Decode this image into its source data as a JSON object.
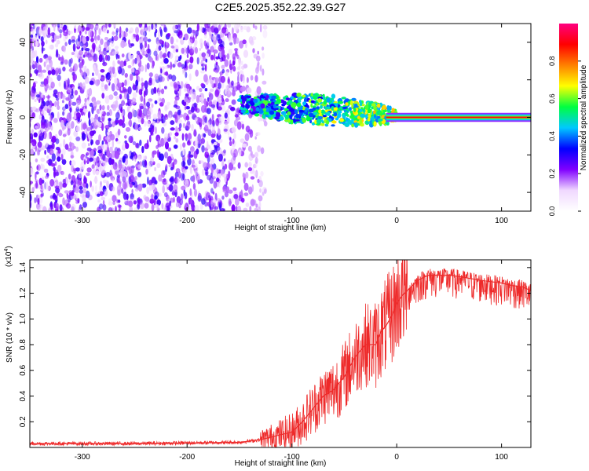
{
  "title": "C2E5.2025.352.22.39.G27",
  "colors": {
    "track": "#ff2020",
    "snr_line": "#ee2a2a",
    "cloud": "#7a1fe0",
    "frame": "#000000"
  },
  "chart_data": [
    {
      "type": "heatmap",
      "title": "C2E5.2025.352.22.39.G27",
      "xlabel": "Height of straight line (km)",
      "ylabel": "Frequency (Hz)",
      "xlim": [
        -350,
        128
      ],
      "ylim": [
        -50,
        50
      ],
      "xticks": [
        -300,
        -200,
        -100,
        0,
        100
      ],
      "yticks": [
        -40,
        -20,
        0,
        20,
        40
      ],
      "colorbar": {
        "label": "Normalized spectral amplitude",
        "range": [
          0,
          1
        ],
        "ticks": [
          "0.0",
          "0.2",
          "0.4",
          "0.6",
          "0.8"
        ],
        "stops": [
          "#ffffff",
          "#f0d8ff",
          "#8000ff",
          "#0000ff",
          "#00c8ff",
          "#00ff40",
          "#ffff00",
          "#ff8000",
          "#ff0000",
          "#ff0080"
        ]
      },
      "regions": [
        {
          "name": "noise",
          "x_range": [
            -350,
            -140
          ],
          "freq_range": [
            -50,
            50
          ],
          "amplitude": "low (0.1-0.25)"
        },
        {
          "name": "signal",
          "x_range": [
            -150,
            0
          ],
          "freq_center_start": 7,
          "freq_center_end": 1,
          "amplitude": "mid (0.3-0.6)"
        },
        {
          "name": "steady_track",
          "x_range": [
            0,
            128
          ],
          "freq": 0,
          "amplitude": "high (0.9)"
        }
      ]
    },
    {
      "type": "line",
      "xlabel": "Height of straight line (km)",
      "ylabel": "SNR (10 * v/v)",
      "exponent_label": "(x10",
      "exponent_power": "4",
      "exponent_close": ")",
      "xlim": [
        -350,
        128
      ],
      "ylim": [
        0,
        1.46
      ],
      "xticks": [
        -300,
        -200,
        -100,
        0,
        100
      ],
      "yticks": [
        0.2,
        0.4,
        0.6,
        0.8,
        1.0,
        1.2,
        1.4
      ],
      "series": [
        {
          "name": "SNR",
          "x": [
            -350,
            -250,
            -150,
            -130,
            -110,
            -100,
            -90,
            -80,
            -70,
            -60,
            -50,
            -40,
            -30,
            -20,
            -15,
            -10,
            -5,
            0,
            5,
            10,
            20,
            30,
            40,
            50,
            60,
            80,
            100,
            110,
            120,
            128
          ],
          "y": [
            0.03,
            0.03,
            0.04,
            0.06,
            0.1,
            0.12,
            0.2,
            0.3,
            0.4,
            0.45,
            0.55,
            0.7,
            0.8,
            0.8,
            0.9,
            0.95,
            1.02,
            1.12,
            1.18,
            1.22,
            1.3,
            1.34,
            1.34,
            1.34,
            1.33,
            1.3,
            1.28,
            1.26,
            1.25,
            1.22
          ]
        }
      ]
    }
  ]
}
